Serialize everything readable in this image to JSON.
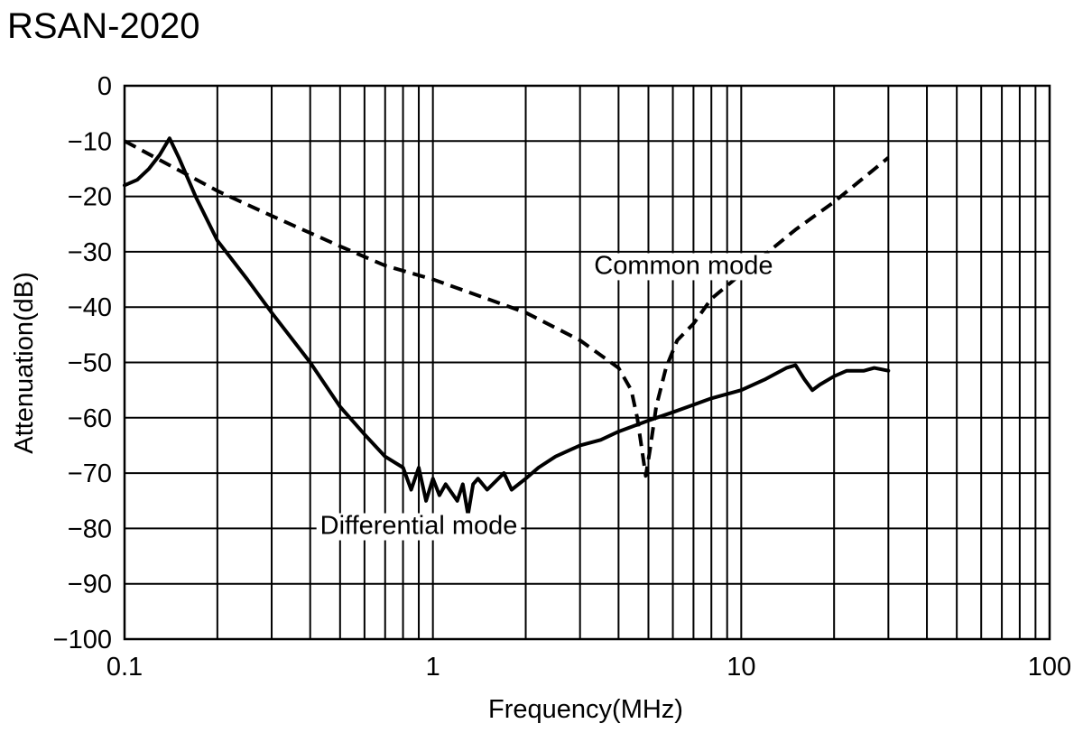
{
  "chart_data": {
    "type": "line",
    "title": "RSAN-2020",
    "xlabel": "Frequency(MHz)",
    "ylabel": "Attenuation(dB)",
    "xscale": "log",
    "xlim": [
      0.1,
      100
    ],
    "ylim": [
      -100,
      0
    ],
    "grid": true,
    "xticks": [
      {
        "value": 0.1,
        "label": "0.1"
      },
      {
        "value": 1,
        "label": "1"
      },
      {
        "value": 10,
        "label": "10"
      },
      {
        "value": 100,
        "label": "100"
      }
    ],
    "yticks": [
      {
        "value": 0,
        "label": "0"
      },
      {
        "value": -10,
        "label": "−10"
      },
      {
        "value": -20,
        "label": "−20"
      },
      {
        "value": -30,
        "label": "−30"
      },
      {
        "value": -40,
        "label": "−40"
      },
      {
        "value": -50,
        "label": "−50"
      },
      {
        "value": -60,
        "label": "−60"
      },
      {
        "value": -70,
        "label": "−70"
      },
      {
        "value": -80,
        "label": "−80"
      },
      {
        "value": -90,
        "label": "−90"
      },
      {
        "value": -100,
        "label": "−100"
      }
    ],
    "series": [
      {
        "name": "Common mode",
        "style": "dashed",
        "label_anchor": {
          "x": 6.5,
          "y": -34
        },
        "points": [
          [
            0.1,
            -10
          ],
          [
            0.2,
            -19
          ],
          [
            0.3,
            -23.5
          ],
          [
            0.5,
            -29
          ],
          [
            0.7,
            -32.5
          ],
          [
            1,
            -35
          ],
          [
            1.5,
            -38.5
          ],
          [
            2,
            -41
          ],
          [
            3,
            -46
          ],
          [
            4,
            -51
          ],
          [
            4.4,
            -55
          ],
          [
            4.6,
            -60
          ],
          [
            4.8,
            -67
          ],
          [
            4.9,
            -70.5
          ],
          [
            5.05,
            -66
          ],
          [
            5.3,
            -58
          ],
          [
            5.7,
            -51
          ],
          [
            6.2,
            -46
          ],
          [
            7,
            -43
          ],
          [
            8,
            -38.5
          ],
          [
            10,
            -34
          ],
          [
            15,
            -26
          ],
          [
            20,
            -21
          ],
          [
            30,
            -13
          ]
        ]
      },
      {
        "name": "Differential mode",
        "style": "solid",
        "label_anchor": {
          "x": 0.9,
          "y": -81
        },
        "points": [
          [
            0.1,
            -18
          ],
          [
            0.11,
            -17
          ],
          [
            0.12,
            -15
          ],
          [
            0.13,
            -12.5
          ],
          [
            0.14,
            -9.5
          ],
          [
            0.15,
            -13
          ],
          [
            0.17,
            -20
          ],
          [
            0.2,
            -28
          ],
          [
            0.25,
            -35
          ],
          [
            0.3,
            -41
          ],
          [
            0.4,
            -50
          ],
          [
            0.5,
            -58
          ],
          [
            0.6,
            -63
          ],
          [
            0.7,
            -67
          ],
          [
            0.8,
            -69
          ],
          [
            0.85,
            -73
          ],
          [
            0.9,
            -69
          ],
          [
            0.95,
            -75
          ],
          [
            1.0,
            -71
          ],
          [
            1.05,
            -74
          ],
          [
            1.1,
            -72
          ],
          [
            1.2,
            -75
          ],
          [
            1.25,
            -72
          ],
          [
            1.3,
            -77.5
          ],
          [
            1.35,
            -72
          ],
          [
            1.4,
            -71
          ],
          [
            1.5,
            -73
          ],
          [
            1.7,
            -70
          ],
          [
            1.8,
            -73
          ],
          [
            2.0,
            -71
          ],
          [
            2.2,
            -69
          ],
          [
            2.5,
            -67
          ],
          [
            3,
            -65
          ],
          [
            3.5,
            -64
          ],
          [
            4,
            -62.5
          ],
          [
            5,
            -60.5
          ],
          [
            6,
            -59
          ],
          [
            8,
            -56.5
          ],
          [
            10,
            -55
          ],
          [
            12,
            -53
          ],
          [
            14,
            -51
          ],
          [
            15,
            -50.5
          ],
          [
            16,
            -53
          ],
          [
            17,
            -55
          ],
          [
            18,
            -54
          ],
          [
            20,
            -52.5
          ],
          [
            22,
            -51.5
          ],
          [
            25,
            -51.5
          ],
          [
            27,
            -51
          ],
          [
            30,
            -51.5
          ]
        ]
      }
    ]
  }
}
